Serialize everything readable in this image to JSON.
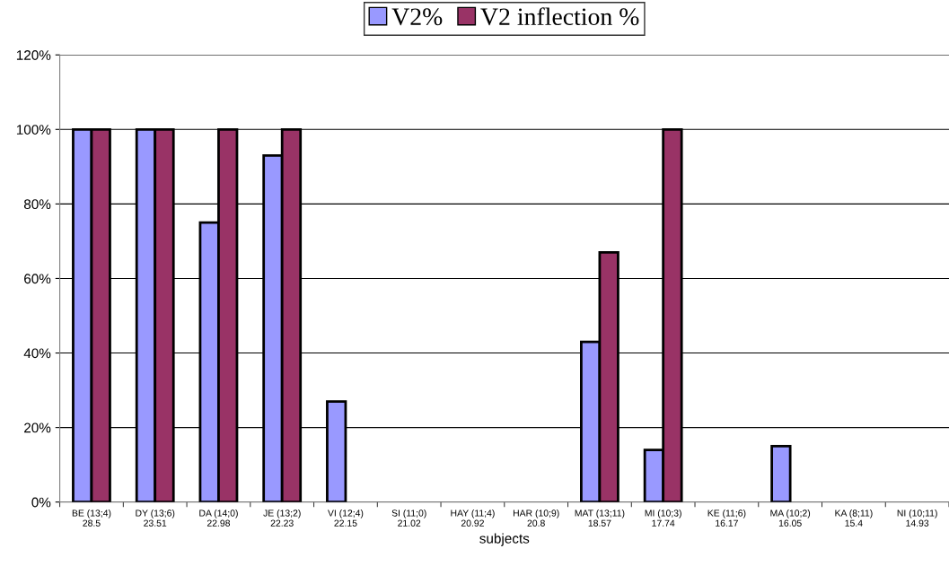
{
  "chart_data": {
    "type": "bar",
    "categories": [
      "BE (13;4)\n28.5",
      "DY (13;6)\n23.51",
      "DA (14;0)\n22.98",
      "JE (13;2)\n22.23",
      "VI (12;4)\n22.15",
      "SI (11;0)\n21.02",
      "HAY (11;4)\n20.92",
      "HAR (10;9)\n20.8",
      "MAT (13;11)\n18.57",
      "MI (10;3)\n17.74",
      "KE (11;6)\n16.17",
      "MA (10;2)\n16.05",
      "KA (8;11)\n15.4",
      "NI (10;11)\n14.93"
    ],
    "series": [
      {
        "name": "V2%",
        "color": "#9999ff",
        "values": [
          100,
          100,
          75,
          93,
          27,
          null,
          null,
          null,
          43,
          14,
          null,
          15,
          null,
          null
        ]
      },
      {
        "name": "V2 inflection %",
        "color": "#993366",
        "values": [
          100,
          100,
          100,
          100,
          null,
          null,
          null,
          null,
          67,
          100,
          null,
          null,
          null,
          null
        ]
      }
    ],
    "xlabel": "subjects",
    "ylim": [
      0,
      120
    ],
    "yticks": [
      {
        "value": 0,
        "label": "0%"
      },
      {
        "value": 20,
        "label": "20%"
      },
      {
        "value": 40,
        "label": "40%"
      },
      {
        "value": 60,
        "label": "60%"
      },
      {
        "value": 80,
        "label": "80%"
      },
      {
        "value": 100,
        "label": "100%"
      },
      {
        "value": 120,
        "label": "120%"
      }
    ],
    "grid": "y",
    "legend": "top"
  }
}
